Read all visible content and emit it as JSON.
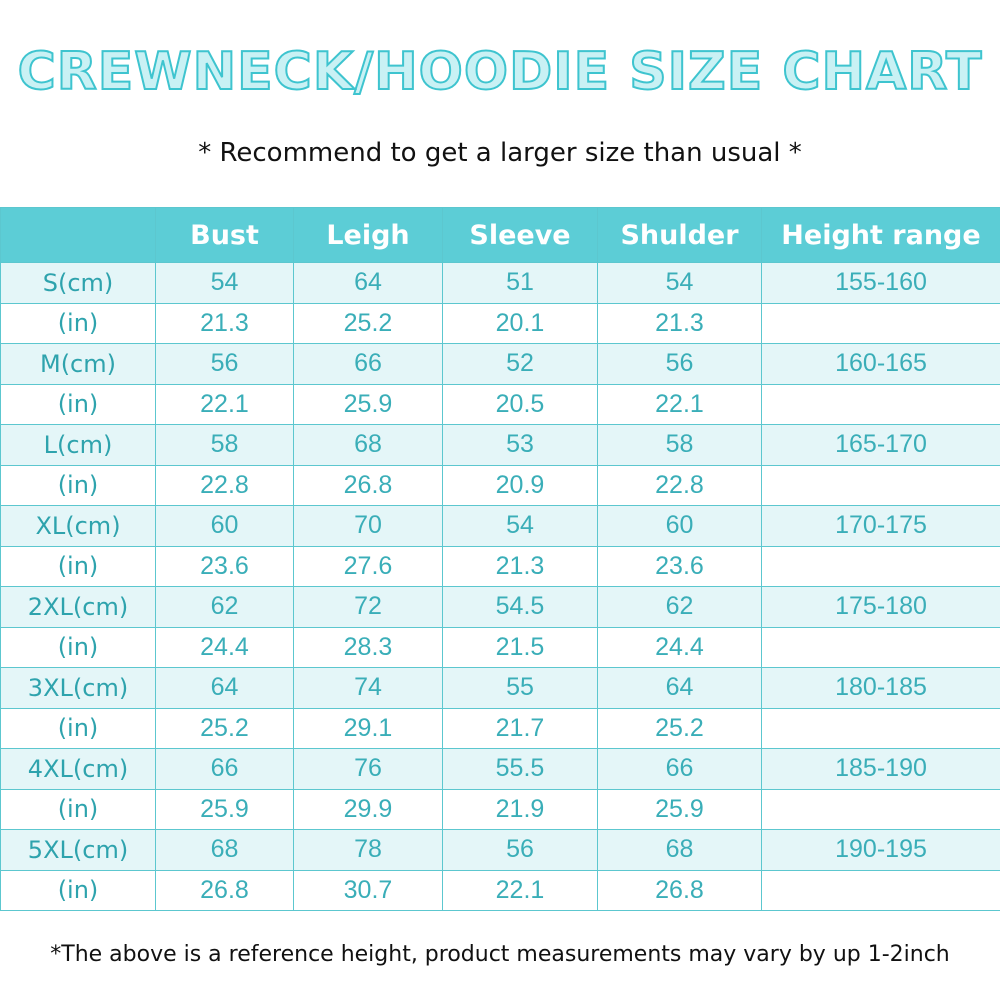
{
  "title": "CREWNECK/HOODIE SIZE CHART",
  "subtitle": "* Recommend to get a larger size than usual *",
  "table": {
    "headers": [
      "",
      "Bust",
      "Leigh",
      "Sleeve",
      "Shulder",
      "Height range"
    ],
    "rows": [
      [
        "S(cm)",
        "54",
        "64",
        "51",
        "54",
        "155-160"
      ],
      [
        "(in)",
        "21.3",
        "25.2",
        "20.1",
        "21.3",
        ""
      ],
      [
        "M(cm)",
        "56",
        "66",
        "52",
        "56",
        "160-165"
      ],
      [
        "(in)",
        "22.1",
        "25.9",
        "20.5",
        "22.1",
        ""
      ],
      [
        "L(cm)",
        "58",
        "68",
        "53",
        "58",
        "165-170"
      ],
      [
        "(in)",
        "22.8",
        "26.8",
        "20.9",
        "22.8",
        ""
      ],
      [
        "XL(cm)",
        "60",
        "70",
        "54",
        "60",
        "170-175"
      ],
      [
        "(in)",
        "23.6",
        "27.6",
        "21.3",
        "23.6",
        ""
      ],
      [
        "2XL(cm)",
        "62",
        "72",
        "54.5",
        "62",
        "175-180"
      ],
      [
        "(in)",
        "24.4",
        "28.3",
        "21.5",
        "24.4",
        ""
      ],
      [
        "3XL(cm)",
        "64",
        "74",
        "55",
        "64",
        "180-185"
      ],
      [
        "(in)",
        "25.2",
        "29.1",
        "21.7",
        "25.2",
        ""
      ],
      [
        "4XL(cm)",
        "66",
        "76",
        "55.5",
        "66",
        "185-190"
      ],
      [
        "(in)",
        "25.9",
        "29.9",
        "21.9",
        "25.9",
        ""
      ],
      [
        "5XL(cm)",
        "68",
        "78",
        "56",
        "68",
        "190-195"
      ],
      [
        "(in)",
        "26.8",
        "30.7",
        "22.1",
        "26.8",
        ""
      ]
    ]
  },
  "footnote": "*The above is a reference height, product measurements may vary by up 1-2inch",
  "colors": {
    "header_bg": "#5ccdd6",
    "header_text": "#ffffff",
    "cell_text": "#3aaeb8",
    "cm_row_bg": "#e4f6f8",
    "border": "#5cc7cf",
    "title_stroke": "#3ec4cf",
    "title_fill": "#c9f1f4"
  }
}
